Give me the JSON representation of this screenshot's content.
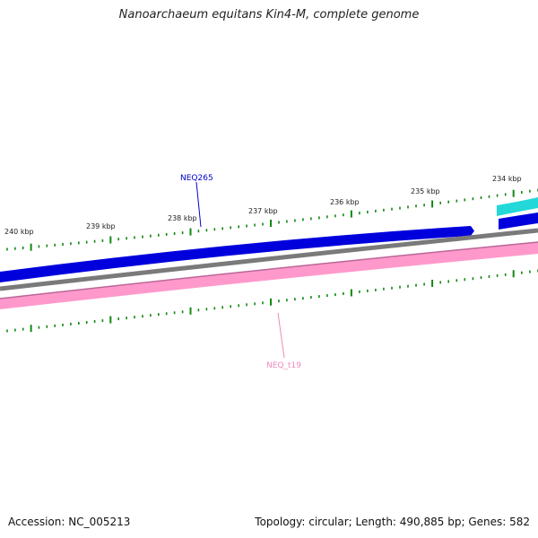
{
  "title": "Nanoarchaeum equitans Kin4-M, complete genome",
  "footer": {
    "accession": "Accession: NC_005213",
    "summary": "Topology: circular; Length: 490,885 bp; Genes: 582"
  },
  "tick_labels": [
    "234 kbp",
    "235 kbp",
    "236 kbp",
    "237 kbp",
    "238 kbp",
    "239 kbp",
    "240 kbp"
  ],
  "features": [
    {
      "label": "NEQ265",
      "color": "#0000cc"
    },
    {
      "label": "NEQ_t19",
      "color": "#ee88bb"
    }
  ],
  "colors": {
    "cds_forward": "#0000dd",
    "cds_other": "#22d8d8",
    "backbone": "#7a7a7a",
    "rna": "#ff99cc",
    "ticks": "#118811"
  }
}
